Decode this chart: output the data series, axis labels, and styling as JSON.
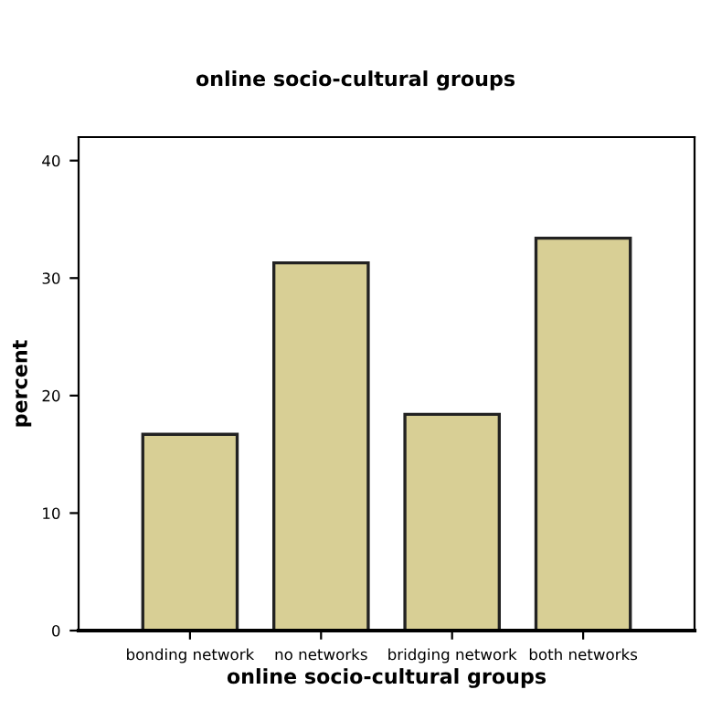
{
  "chart_data": {
    "type": "bar",
    "title": "online socio-cultural groups",
    "xlabel": "online socio-cultural groups",
    "ylabel": "percent",
    "categories": [
      "bonding network",
      "no networks",
      "bridging network",
      "both networks"
    ],
    "values": [
      16.7,
      31.3,
      18.4,
      33.4
    ],
    "color": "#d8cf95",
    "ylim": [
      0,
      42
    ],
    "yticks": [
      0,
      10,
      20,
      30,
      40
    ],
    "grid": false,
    "legend": false
  }
}
